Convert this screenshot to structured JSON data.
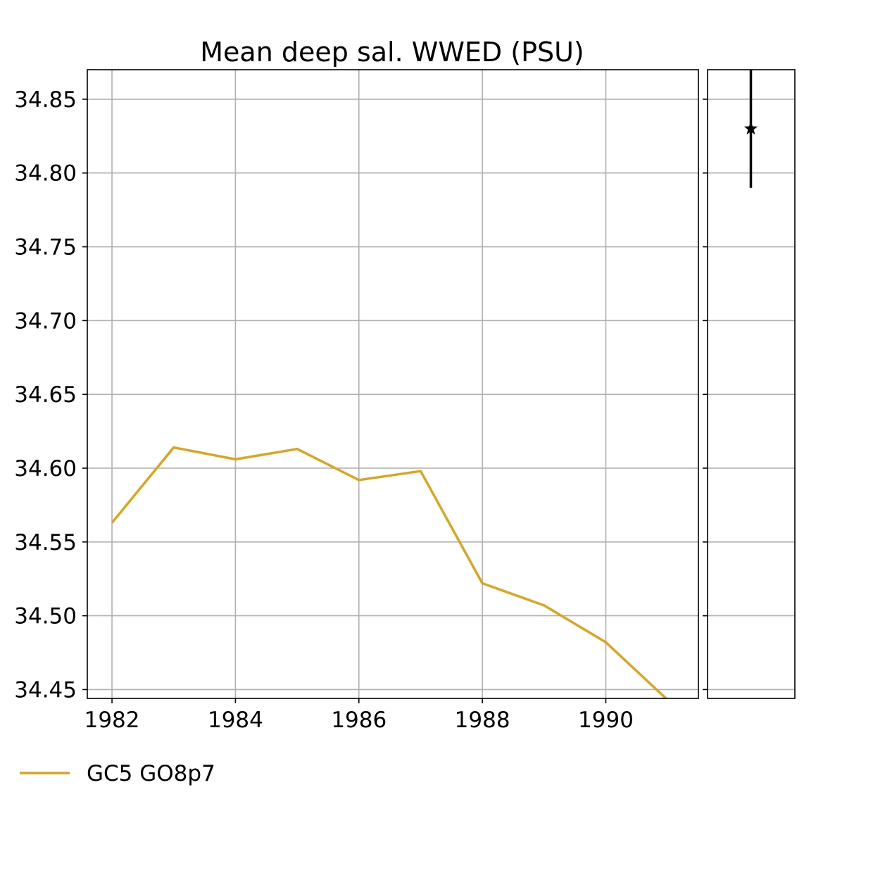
{
  "chart_data": {
    "type": "line",
    "title": "Mean deep sal. WWED  (PSU)",
    "xlabel": "",
    "ylabel": "",
    "x": [
      1982,
      1983,
      1984,
      1985,
      1986,
      1987,
      1988,
      1989,
      1990,
      1991
    ],
    "series": [
      {
        "name": "GC5 GO8p7",
        "color": "#daa520",
        "values": [
          34.563,
          34.614,
          34.606,
          34.613,
          34.592,
          34.598,
          34.522,
          34.507,
          34.482,
          34.443
        ]
      }
    ],
    "xlim": [
      1981.6,
      1991.5
    ],
    "ylim": [
      34.444,
      34.87
    ],
    "xticks": [
      1982,
      1984,
      1986,
      1988,
      1990
    ],
    "xtick_labels": [
      "1982",
      "1984",
      "1986",
      "1988",
      "1990"
    ],
    "yticks": [
      34.45,
      34.5,
      34.55,
      34.6,
      34.65,
      34.7,
      34.75,
      34.8,
      34.85
    ],
    "ytick_labels": [
      "34.45",
      "34.50",
      "34.55",
      "34.60",
      "34.65",
      "34.70",
      "34.75",
      "34.80",
      "34.85"
    ],
    "grid": true,
    "legend_position": "bottom-left",
    "observation": {
      "marker": "star",
      "color": "#000000",
      "value": 34.83,
      "range": [
        34.79,
        34.87
      ]
    }
  }
}
